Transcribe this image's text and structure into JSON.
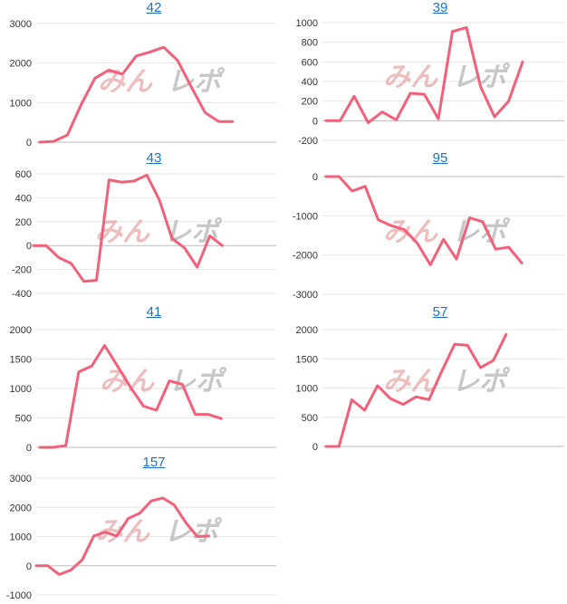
{
  "colors": {
    "line": "#f2607a",
    "title_link": "#1a73c9"
  },
  "watermark": {
    "part1": "みん",
    "part2": "レポ"
  },
  "chart_data": [
    {
      "type": "line",
      "title": "42",
      "ylim": [
        0,
        3000
      ],
      "yticks": [
        0,
        1000,
        2000,
        3000
      ],
      "values": [
        0,
        20,
        180,
        950,
        1620,
        1820,
        1720,
        2180,
        2280,
        2400,
        2070,
        1400,
        750,
        520,
        520
      ]
    },
    {
      "type": "line",
      "title": "39",
      "ylim": [
        -200,
        1000
      ],
      "yticks": [
        -200,
        0,
        200,
        400,
        600,
        800,
        1000
      ],
      "values": [
        0,
        0,
        250,
        -20,
        90,
        10,
        280,
        270,
        20,
        910,
        950,
        350,
        40,
        200,
        600
      ]
    },
    {
      "type": "line",
      "title": "43",
      "ylim": [
        -400,
        600
      ],
      "yticks": [
        -400,
        -200,
        0,
        200,
        400,
        600
      ],
      "values": [
        0,
        0,
        -100,
        -150,
        -300,
        -290,
        550,
        530,
        540,
        590,
        380,
        60,
        -20,
        -180,
        80,
        0
      ]
    },
    {
      "type": "line",
      "title": "95",
      "ylim": [
        -3000,
        0
      ],
      "yticks": [
        -3000,
        -2000,
        -1000,
        0
      ],
      "values": [
        0,
        0,
        -370,
        -250,
        -1100,
        -1250,
        -1350,
        -1700,
        -2250,
        -1600,
        -2100,
        -1050,
        -1150,
        -1850,
        -1800,
        -2200
      ]
    },
    {
      "type": "line",
      "title": "41",
      "ylim": [
        0,
        2000
      ],
      "yticks": [
        0,
        500,
        1000,
        1500,
        2000
      ],
      "values": [
        0,
        0,
        30,
        1280,
        1380,
        1730,
        1380,
        1020,
        700,
        630,
        1130,
        1070,
        560,
        560,
        490
      ]
    },
    {
      "type": "line",
      "title": "57",
      "ylim": [
        0,
        2000
      ],
      "yticks": [
        0,
        500,
        1000,
        1500,
        2000
      ],
      "values": [
        0,
        0,
        800,
        620,
        1040,
        820,
        720,
        850,
        800,
        1290,
        1750,
        1730,
        1350,
        1470,
        1920
      ]
    },
    {
      "type": "line",
      "title": "157",
      "ylim": [
        -1000,
        3000
      ],
      "yticks": [
        -1000,
        0,
        1000,
        2000,
        3000
      ],
      "values": [
        0,
        0,
        -300,
        -150,
        200,
        1020,
        1150,
        1020,
        1620,
        1800,
        2220,
        2320,
        2080,
        1480,
        1000,
        1020
      ]
    }
  ]
}
